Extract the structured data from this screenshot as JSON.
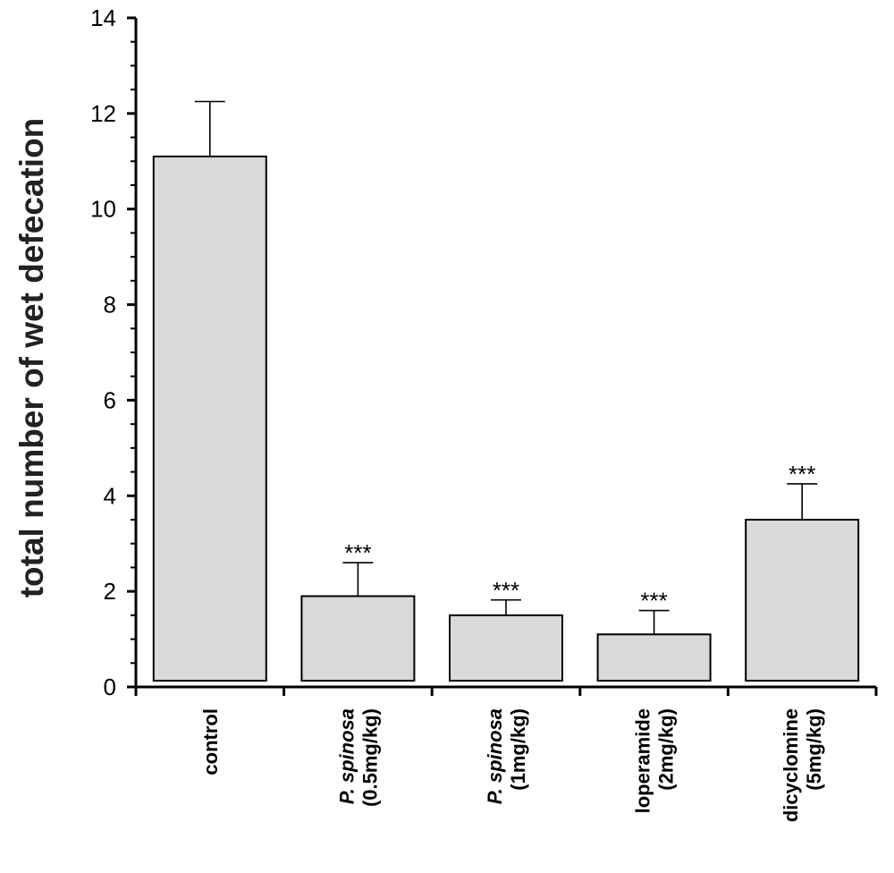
{
  "chart_data": {
    "type": "bar",
    "title": "",
    "xlabel": "",
    "ylabel": "total number of wet defecation",
    "ylim": [
      0,
      14
    ],
    "yticks": [
      0,
      2,
      4,
      6,
      8,
      10,
      12,
      14
    ],
    "grid": false,
    "categories": [
      {
        "lines": [
          {
            "text": "control",
            "italic": false
          }
        ]
      },
      {
        "lines": [
          {
            "text": "P. spinosa",
            "italic": true
          },
          {
            "text": "(0.5mg/kg)",
            "italic": false
          }
        ]
      },
      {
        "lines": [
          {
            "text": "P. spinosa",
            "italic": true
          },
          {
            "text": "(1mg/kg)",
            "italic": false
          }
        ]
      },
      {
        "lines": [
          {
            "text": "loperamide",
            "italic": false
          },
          {
            "text": "(2mg/kg)",
            "italic": false
          }
        ]
      },
      {
        "lines": [
          {
            "text": "dicyclomine",
            "italic": false
          },
          {
            "text": "(5mg/kg)",
            "italic": false
          }
        ]
      }
    ],
    "values": [
      11.1,
      1.9,
      1.5,
      1.1,
      3.5
    ],
    "errors": [
      1.15,
      0.7,
      0.32,
      0.5,
      0.75
    ],
    "significance": [
      "",
      "***",
      "***",
      "***",
      "***"
    ],
    "bar_color": "#d9d9d9"
  }
}
